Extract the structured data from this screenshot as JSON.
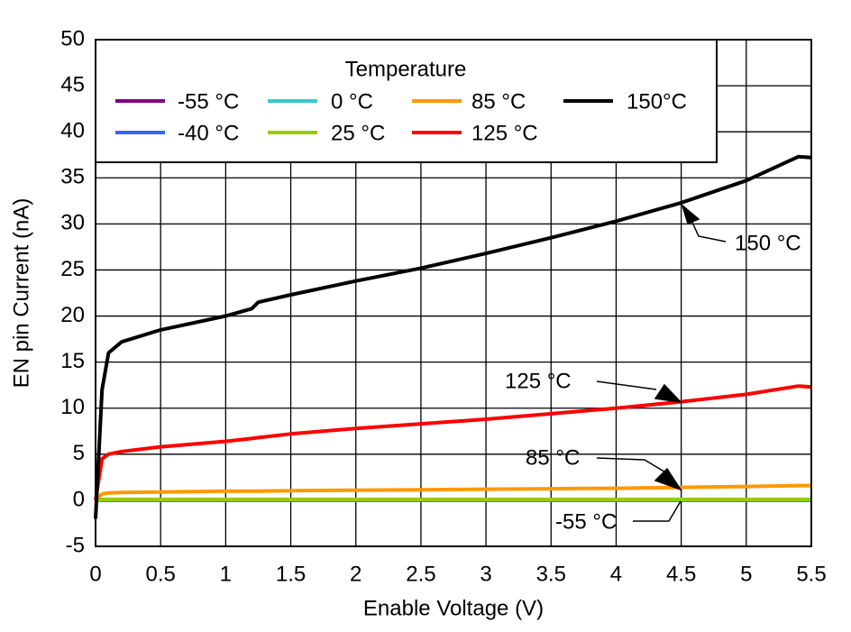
{
  "chart_data": {
    "type": "line",
    "xlabel": "Enable Voltage (V)",
    "ylabel": "EN pin Current (nA)",
    "legend_title": "Temperature",
    "x": [
      0,
      0.05,
      0.1,
      0.2,
      0.5,
      1,
      1.2,
      1.25,
      1.5,
      2,
      2.5,
      3,
      3.5,
      4,
      4.5,
      5,
      5.4,
      5.5
    ],
    "series": [
      {
        "name": "-55 °C",
        "color": "#800080",
        "values": [
          0,
          0,
          0,
          0,
          0,
          0,
          0,
          0,
          0,
          0,
          0,
          0,
          0,
          0,
          0,
          0,
          0,
          0
        ]
      },
      {
        "name": "-40 °C",
        "color": "#3366ff",
        "values": [
          0,
          0,
          0,
          0,
          0,
          0,
          0,
          0,
          0,
          0,
          0,
          0,
          0,
          0,
          0,
          0,
          0,
          0
        ]
      },
      {
        "name": "0 °C",
        "color": "#33cccc",
        "values": [
          0,
          0.05,
          0.05,
          0.05,
          0.05,
          0.05,
          0.05,
          0.05,
          0.05,
          0.05,
          0.05,
          0.05,
          0.05,
          0.05,
          0.05,
          0.05,
          0.05,
          0.05
        ]
      },
      {
        "name": "25 °C",
        "color": "#99cc00",
        "values": [
          0,
          0.1,
          0.1,
          0.1,
          0.1,
          0.1,
          0.1,
          0.1,
          0.1,
          0.1,
          0.1,
          0.1,
          0.1,
          0.1,
          0.1,
          0.1,
          0.1,
          0.1
        ]
      },
      {
        "name": "85 °C",
        "color": "#ff9900",
        "values": [
          0,
          0.7,
          0.8,
          0.85,
          0.9,
          1.0,
          1.0,
          1.0,
          1.05,
          1.1,
          1.15,
          1.2,
          1.25,
          1.3,
          1.4,
          1.5,
          1.6,
          1.6
        ]
      },
      {
        "name": "125 °C",
        "color": "#ff0000",
        "values": [
          0,
          4.5,
          5,
          5.3,
          5.8,
          6.4,
          6.7,
          6.8,
          7.2,
          7.8,
          8.3,
          8.8,
          9.4,
          10,
          10.7,
          11.5,
          12.4,
          12.3
        ]
      },
      {
        "name": "150°C",
        "color": "#000000",
        "values": [
          -2,
          12,
          16,
          17.2,
          18.5,
          20,
          20.8,
          21.5,
          22.3,
          23.8,
          25.2,
          26.8,
          28.5,
          30.3,
          32.3,
          34.7,
          37.3,
          37.2
        ]
      }
    ],
    "annotations": [
      "150 °C",
      "125 °C",
      "85 °C",
      "-55 °C"
    ],
    "xlim": [
      0,
      5.5
    ],
    "xticks": [
      0,
      0.5,
      1,
      1.5,
      2,
      2.5,
      3,
      3.5,
      4,
      4.5,
      5,
      5.5
    ],
    "ylim": [
      -5,
      50
    ],
    "yticks": [
      -5,
      0,
      5,
      10,
      15,
      20,
      25,
      30,
      35,
      40,
      45,
      50
    ],
    "grid": true
  }
}
